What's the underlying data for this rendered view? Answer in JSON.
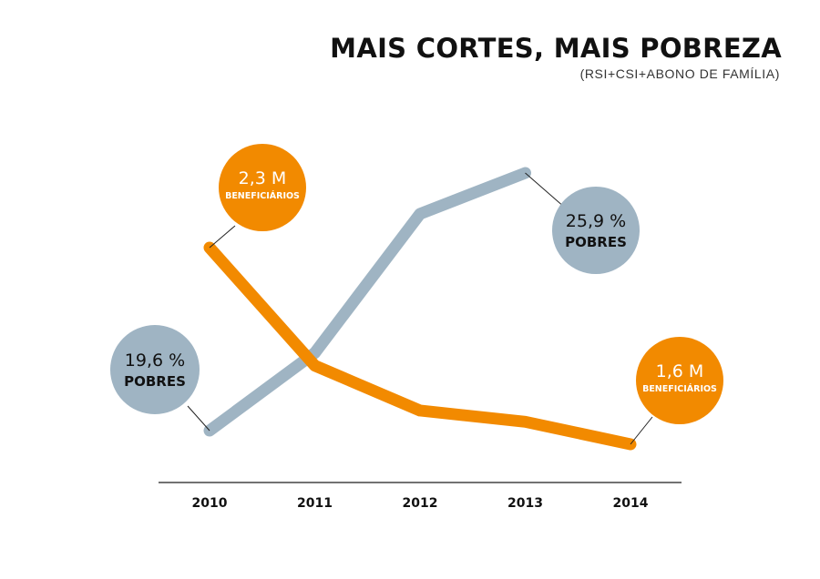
{
  "title": "MAIS CORTES, MAIS POBREZA",
  "subtitle": "(RSI+CSI+ABONO DE FAMÍLIA)",
  "colors": {
    "beneficiarios": "#F28A00",
    "pobres": "#9FB4C3",
    "axis": "#444444",
    "leader": "#222222"
  },
  "chart_data": {
    "type": "line",
    "title": "MAIS CORTES, MAIS POBREZA",
    "subtitle": "(RSI+CSI+ABONO DE FAMÍLIA)",
    "categories": [
      "2010",
      "2011",
      "2012",
      "2013",
      "2014"
    ],
    "series": [
      {
        "key": "beneficiarios",
        "values": [
          2.3,
          1.88,
          1.72,
          1.68,
          1.6
        ],
        "unit": "M"
      },
      {
        "key": "pobres",
        "values": [
          19.6,
          21.5,
          24.9,
          25.9,
          null
        ],
        "unit": "%"
      }
    ],
    "annotations": [
      {
        "series": "beneficiarios",
        "point": "2010",
        "value": "2,3 M",
        "caption": "BENEFICIÁRIOS"
      },
      {
        "series": "beneficiarios",
        "point": "2014",
        "value": "1,6 M",
        "caption": "BENEFICIÁRIOS"
      },
      {
        "series": "pobres",
        "point": "2010",
        "value": "19,6 %",
        "caption": "POBRES"
      },
      {
        "series": "pobres",
        "point": "2013",
        "value": "25,9 %",
        "caption": "POBRES"
      }
    ],
    "grid": false,
    "legend": "none"
  }
}
